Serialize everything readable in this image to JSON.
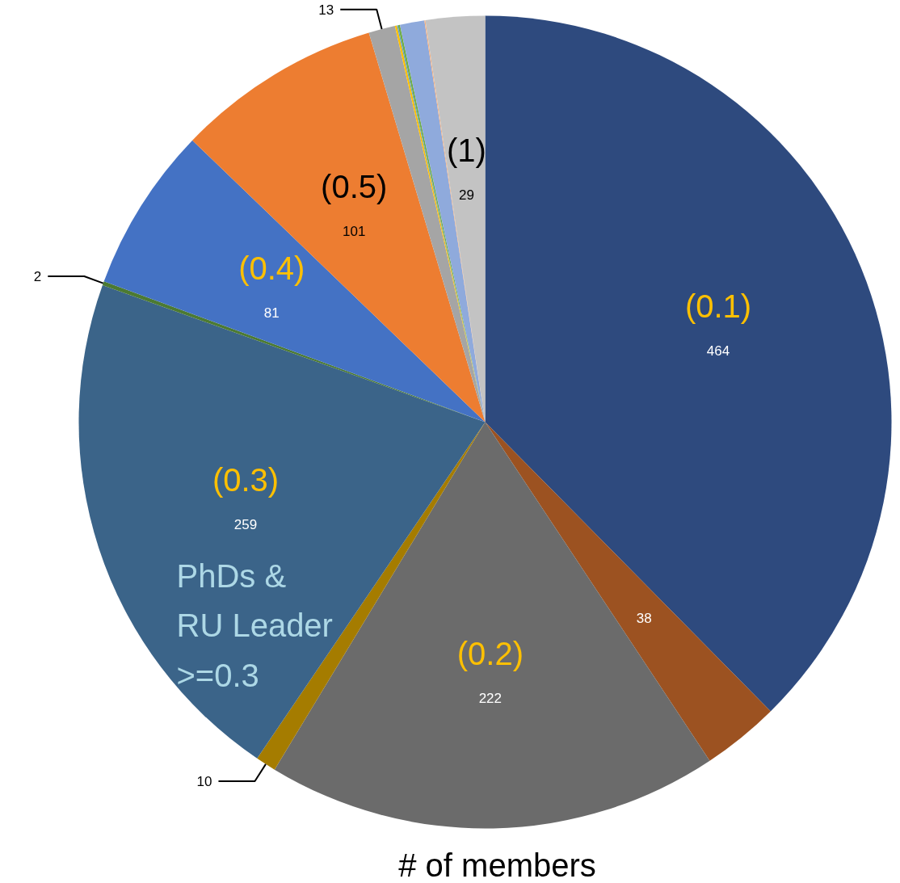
{
  "chart_data": {
    "type": "pie",
    "title": "# of members",
    "categories": [
      "(0.1)",
      null,
      "(0.2)",
      null,
      "(0.3)",
      null,
      "(0.4)",
      "(0.5)",
      null,
      null,
      null,
      null,
      null,
      null,
      "(1)"
    ],
    "values": [
      464,
      38,
      222,
      10,
      259,
      2,
      81,
      101,
      13,
      1,
      0.5,
      1,
      12,
      0.5,
      29
    ],
    "value_labels": [
      "464",
      "38",
      "222",
      "10",
      "259",
      "2",
      "81",
      "101",
      "13",
      null,
      null,
      null,
      null,
      null,
      "29"
    ],
    "colors": [
      "#2e4a7e",
      "#9c5221",
      "#6b6b6b",
      "#a57c00",
      "#3b6489",
      "#4c7a32",
      "#4472c4",
      "#ed7d31",
      "#a5a5a5",
      "#ffc000",
      "#5b9bd5",
      "#70ad47",
      "#8faadc",
      "#f4b183",
      "#c3c3c3"
    ],
    "annotations": [
      "PhDs &\nRU Leader\n>=0.3"
    ]
  }
}
